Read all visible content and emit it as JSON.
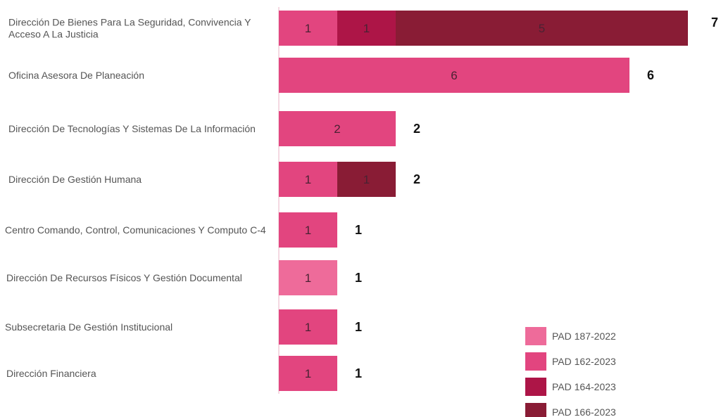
{
  "chart_data": {
    "type": "bar",
    "orientation": "horizontal",
    "stacked": true,
    "title": "",
    "xlabel": "",
    "ylabel": "",
    "grid": false,
    "legend_position": "bottom-right",
    "categories": [
      "Dirección De Bienes Para La Seguridad, Convivencia Y Acceso A La Justicia",
      "Oficina Asesora De Planeación",
      "Dirección De Tecnologías Y Sistemas De La Información",
      "Dirección De Gestión Humana",
      "Centro Comando, Control, Comunicaciones Y Computo C-4",
      "Dirección De Recursos Físicos Y Gestión Documental",
      "Subsecretaria De Gestión Institucional",
      "Dirección Financiera"
    ],
    "series": [
      {
        "name": "PAD 187-2022",
        "color": "#ee6b9a",
        "values": [
          0,
          0,
          0,
          0,
          0,
          1,
          0,
          0
        ]
      },
      {
        "name": "PAD 162-2023",
        "color": "#e2457f",
        "values": [
          1,
          6,
          2,
          1,
          1,
          0,
          1,
          1
        ]
      },
      {
        "name": "PAD 164-2023",
        "color": "#ad1547",
        "values": [
          1,
          0,
          0,
          0,
          0,
          0,
          0,
          0
        ]
      },
      {
        "name": "PAD 166-2023",
        "color": "#891c35",
        "values": [
          5,
          0,
          0,
          1,
          0,
          0,
          0,
          0
        ]
      }
    ],
    "totals": [
      7,
      6,
      2,
      2,
      1,
      1,
      1,
      1
    ]
  }
}
